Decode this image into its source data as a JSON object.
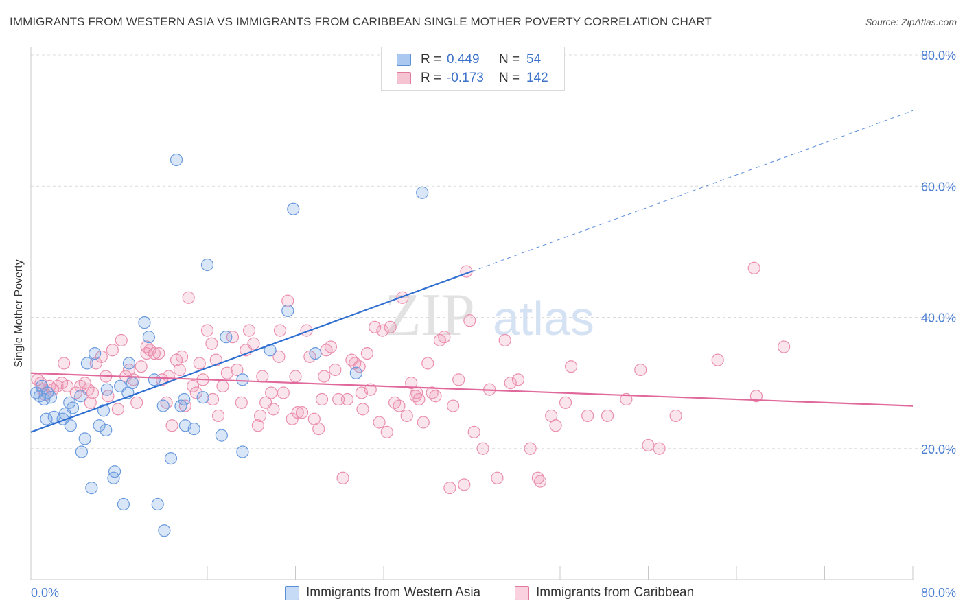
{
  "header": {
    "title": "IMMIGRANTS FROM WESTERN ASIA VS IMMIGRANTS FROM CARIBBEAN SINGLE MOTHER POVERTY CORRELATION CHART",
    "source": "Source: ZipAtlas.com"
  },
  "watermark": {
    "part1": "ZIP",
    "part2": "atlas"
  },
  "stats": {
    "rows": [
      {
        "r_label": "R =",
        "r_value": "0.449",
        "n_label": "N =",
        "n_value": "54",
        "color": "#aac8f0",
        "border": "#5b8fd6"
      },
      {
        "r_label": "R =",
        "r_value": "-0.173",
        "n_label": "N =",
        "n_value": "142",
        "color": "#f6c3d3",
        "border": "#e07a9c"
      }
    ]
  },
  "legend": {
    "items": [
      {
        "label": "Immigrants from Western Asia",
        "color": "#c6dbf6",
        "border": "#5b8fd6"
      },
      {
        "label": "Immigrants from Caribbean",
        "color": "#fad1de",
        "border": "#e07a9c"
      }
    ]
  },
  "colors": {
    "blue_fill": "rgba(120,165,228,0.28)",
    "blue_stroke": "#6a9ade",
    "blue_line": "#2f6fd2",
    "pink_fill": "rgba(240,150,180,0.25)",
    "pink_stroke": "#ea8fae",
    "pink_line": "#e0689a",
    "grid": "#dcdcdc",
    "tick_label": "#4b7fd1"
  },
  "chart_data": {
    "type": "scatter",
    "title": "IMMIGRANTS FROM WESTERN ASIA VS IMMIGRANTS FROM CARIBBEAN SINGLE MOTHER POVERTY CORRELATION CHART",
    "xlabel": "",
    "ylabel": "Single Mother Poverty",
    "xlim": [
      0,
      80
    ],
    "ylim": [
      0,
      80
    ],
    "x_tick_labels": [
      "0.0%",
      "80.0%"
    ],
    "y_ticks": [
      20,
      40,
      60,
      80
    ],
    "y_tick_labels": [
      "20.0%",
      "40.0%",
      "60.0%",
      "80.0%"
    ],
    "grid": true,
    "legend_position": "bottom",
    "series": [
      {
        "name": "Immigrants from Western Asia",
        "color": "#6a9ade",
        "points": [
          [
            0.5,
            28.5
          ],
          [
            0.8,
            28.0
          ],
          [
            1.0,
            29.5
          ],
          [
            1.2,
            27.5
          ],
          [
            1.5,
            28.5
          ],
          [
            1.8,
            27.8
          ],
          [
            1.4,
            24.5
          ],
          [
            2.1,
            24.8
          ],
          [
            2.9,
            24.5
          ],
          [
            3.1,
            25.3
          ],
          [
            3.6,
            23.5
          ],
          [
            3.5,
            27.0
          ],
          [
            3.8,
            26.2
          ],
          [
            4.5,
            28.0
          ],
          [
            4.6,
            19.5
          ],
          [
            4.9,
            21.5
          ],
          [
            5.1,
            33.0
          ],
          [
            5.5,
            14.0
          ],
          [
            5.8,
            34.5
          ],
          [
            6.2,
            23.5
          ],
          [
            6.6,
            25.8
          ],
          [
            6.8,
            22.8
          ],
          [
            6.9,
            29.0
          ],
          [
            7.5,
            15.5
          ],
          [
            7.6,
            16.5
          ],
          [
            8.1,
            29.5
          ],
          [
            8.4,
            11.5
          ],
          [
            8.8,
            28.5
          ],
          [
            8.9,
            33.0
          ],
          [
            9.2,
            30.0
          ],
          [
            10.3,
            39.2
          ],
          [
            10.7,
            37.0
          ],
          [
            11.2,
            30.5
          ],
          [
            11.5,
            11.5
          ],
          [
            12.1,
            7.5
          ],
          [
            12.0,
            26.5
          ],
          [
            12.7,
            18.5
          ],
          [
            13.2,
            64.0
          ],
          [
            13.6,
            26.5
          ],
          [
            13.9,
            27.5
          ],
          [
            14.0,
            23.5
          ],
          [
            14.8,
            23.0
          ],
          [
            15.6,
            27.8
          ],
          [
            16.0,
            48.0
          ],
          [
            17.3,
            22.0
          ],
          [
            17.7,
            37.0
          ],
          [
            19.2,
            30.5
          ],
          [
            19.2,
            19.5
          ],
          [
            21.7,
            35.0
          ],
          [
            23.3,
            41.0
          ],
          [
            23.8,
            56.5
          ],
          [
            25.8,
            34.5
          ],
          [
            29.5,
            31.5
          ],
          [
            35.5,
            59.0
          ]
        ]
      },
      {
        "name": "Immigrants from Caribbean",
        "color": "#ea8fae",
        "points": [
          [
            0.6,
            30.5
          ],
          [
            0.9,
            30.0
          ],
          [
            1.1,
            29.0
          ],
          [
            1.3,
            28.2
          ],
          [
            1.7,
            29.5
          ],
          [
            2.0,
            29.0
          ],
          [
            2.4,
            29.5
          ],
          [
            2.8,
            30.0
          ],
          [
            3.0,
            33.0
          ],
          [
            3.3,
            29.5
          ],
          [
            4.1,
            28.5
          ],
          [
            4.5,
            29.5
          ],
          [
            4.9,
            30.0
          ],
          [
            5.2,
            29.0
          ],
          [
            5.4,
            27.0
          ],
          [
            5.6,
            28.5
          ],
          [
            5.9,
            33.0
          ],
          [
            6.4,
            34.0
          ],
          [
            6.8,
            31.0
          ],
          [
            7.0,
            28.0
          ],
          [
            7.4,
            35.0
          ],
          [
            7.9,
            26.0
          ],
          [
            8.2,
            36.5
          ],
          [
            8.6,
            31.0
          ],
          [
            8.9,
            32.0
          ],
          [
            9.3,
            30.5
          ],
          [
            9.6,
            27.0
          ],
          [
            10.0,
            32.5
          ],
          [
            10.5,
            34.5
          ],
          [
            10.8,
            35.0
          ],
          [
            11.2,
            34.5
          ],
          [
            11.6,
            34.5
          ],
          [
            11.9,
            30.5
          ],
          [
            12.3,
            27.0
          ],
          [
            12.5,
            31.0
          ],
          [
            12.8,
            23.5
          ],
          [
            13.2,
            33.5
          ],
          [
            13.5,
            32.0
          ],
          [
            13.7,
            34.0
          ],
          [
            14.0,
            26.5
          ],
          [
            14.3,
            43.0
          ],
          [
            14.7,
            29.5
          ],
          [
            15.0,
            28.5
          ],
          [
            15.3,
            33.0
          ],
          [
            15.6,
            30.5
          ],
          [
            16.0,
            38.0
          ],
          [
            16.4,
            36.0
          ],
          [
            16.8,
            33.5
          ],
          [
            17.0,
            25.0
          ],
          [
            17.4,
            29.5
          ],
          [
            17.8,
            31.5
          ],
          [
            18.3,
            37.0
          ],
          [
            18.7,
            32.0
          ],
          [
            19.1,
            27.0
          ],
          [
            19.5,
            35.0
          ],
          [
            19.8,
            38.0
          ],
          [
            20.2,
            36.0
          ],
          [
            20.6,
            23.5
          ],
          [
            21.0,
            31.0
          ],
          [
            21.3,
            27.0
          ],
          [
            21.8,
            28.5
          ],
          [
            22.0,
            26.0
          ],
          [
            22.5,
            34.0
          ],
          [
            22.9,
            28.5
          ],
          [
            23.3,
            42.5
          ],
          [
            23.7,
            24.5
          ],
          [
            24.0,
            31.0
          ],
          [
            24.2,
            25.5
          ],
          [
            24.6,
            25.5
          ],
          [
            25.0,
            38.0
          ],
          [
            25.3,
            34.0
          ],
          [
            25.7,
            24.5
          ],
          [
            26.1,
            23.0
          ],
          [
            26.4,
            27.5
          ],
          [
            26.8,
            35.0
          ],
          [
            27.2,
            35.5
          ],
          [
            27.6,
            32.0
          ],
          [
            27.9,
            27.5
          ],
          [
            28.3,
            15.5
          ],
          [
            28.7,
            27.5
          ],
          [
            29.1,
            33.5
          ],
          [
            29.4,
            33.0
          ],
          [
            29.8,
            32.5
          ],
          [
            30.1,
            26.0
          ],
          [
            30.5,
            34.5
          ],
          [
            30.8,
            29.0
          ],
          [
            31.2,
            38.5
          ],
          [
            31.6,
            24.0
          ],
          [
            31.9,
            38.0
          ],
          [
            32.3,
            22.5
          ],
          [
            32.6,
            38.5
          ],
          [
            33.0,
            27.0
          ],
          [
            33.4,
            26.5
          ],
          [
            33.7,
            43.0
          ],
          [
            34.1,
            25.0
          ],
          [
            34.5,
            30.0
          ],
          [
            34.9,
            28.0
          ],
          [
            35.2,
            27.5
          ],
          [
            35.6,
            24.0
          ],
          [
            36.0,
            33.0
          ],
          [
            36.4,
            28.5
          ],
          [
            36.7,
            28.0
          ],
          [
            37.1,
            36.5
          ],
          [
            37.5,
            37.0
          ],
          [
            38.0,
            14.0
          ],
          [
            38.3,
            26.5
          ],
          [
            38.8,
            30.5
          ],
          [
            39.3,
            14.5
          ],
          [
            39.8,
            39.5
          ],
          [
            40.2,
            22.5
          ],
          [
            41.0,
            20.0
          ],
          [
            41.6,
            29.0
          ],
          [
            42.3,
            15.5
          ],
          [
            43.0,
            36.5
          ],
          [
            43.5,
            30.0
          ],
          [
            44.2,
            30.5
          ],
          [
            45.3,
            20.0
          ],
          [
            46.2,
            15.0
          ],
          [
            47.2,
            25.0
          ],
          [
            47.6,
            23.5
          ],
          [
            49.0,
            32.5
          ],
          [
            50.5,
            25.0
          ],
          [
            52.3,
            25.0
          ],
          [
            55.3,
            32.0
          ],
          [
            56.0,
            20.5
          ],
          [
            57.0,
            20.0
          ],
          [
            58.5,
            25.0
          ],
          [
            62.3,
            33.5
          ],
          [
            65.6,
            47.5
          ],
          [
            65.8,
            28.0
          ],
          [
            68.3,
            35.5
          ],
          [
            30.0,
            28.5
          ],
          [
            20.8,
            25.0
          ],
          [
            46.0,
            15.5
          ],
          [
            22.6,
            38.0
          ],
          [
            26.6,
            31.0
          ],
          [
            35.0,
            28.5
          ],
          [
            10.5,
            35.5
          ],
          [
            39.5,
            47.0
          ],
          [
            48.5,
            27.0
          ],
          [
            54.0,
            27.5
          ],
          [
            16.5,
            27.5
          ]
        ]
      }
    ],
    "trend_lines": [
      {
        "series": "Immigrants from Western Asia",
        "solid_from": [
          0,
          22.5
        ],
        "solid_to": [
          40,
          47.0
        ],
        "dashed_to": [
          80,
          71.5
        ]
      },
      {
        "series": "Immigrants from Caribbean",
        "from": [
          0,
          31.5
        ],
        "to": [
          80,
          26.5
        ]
      }
    ]
  }
}
